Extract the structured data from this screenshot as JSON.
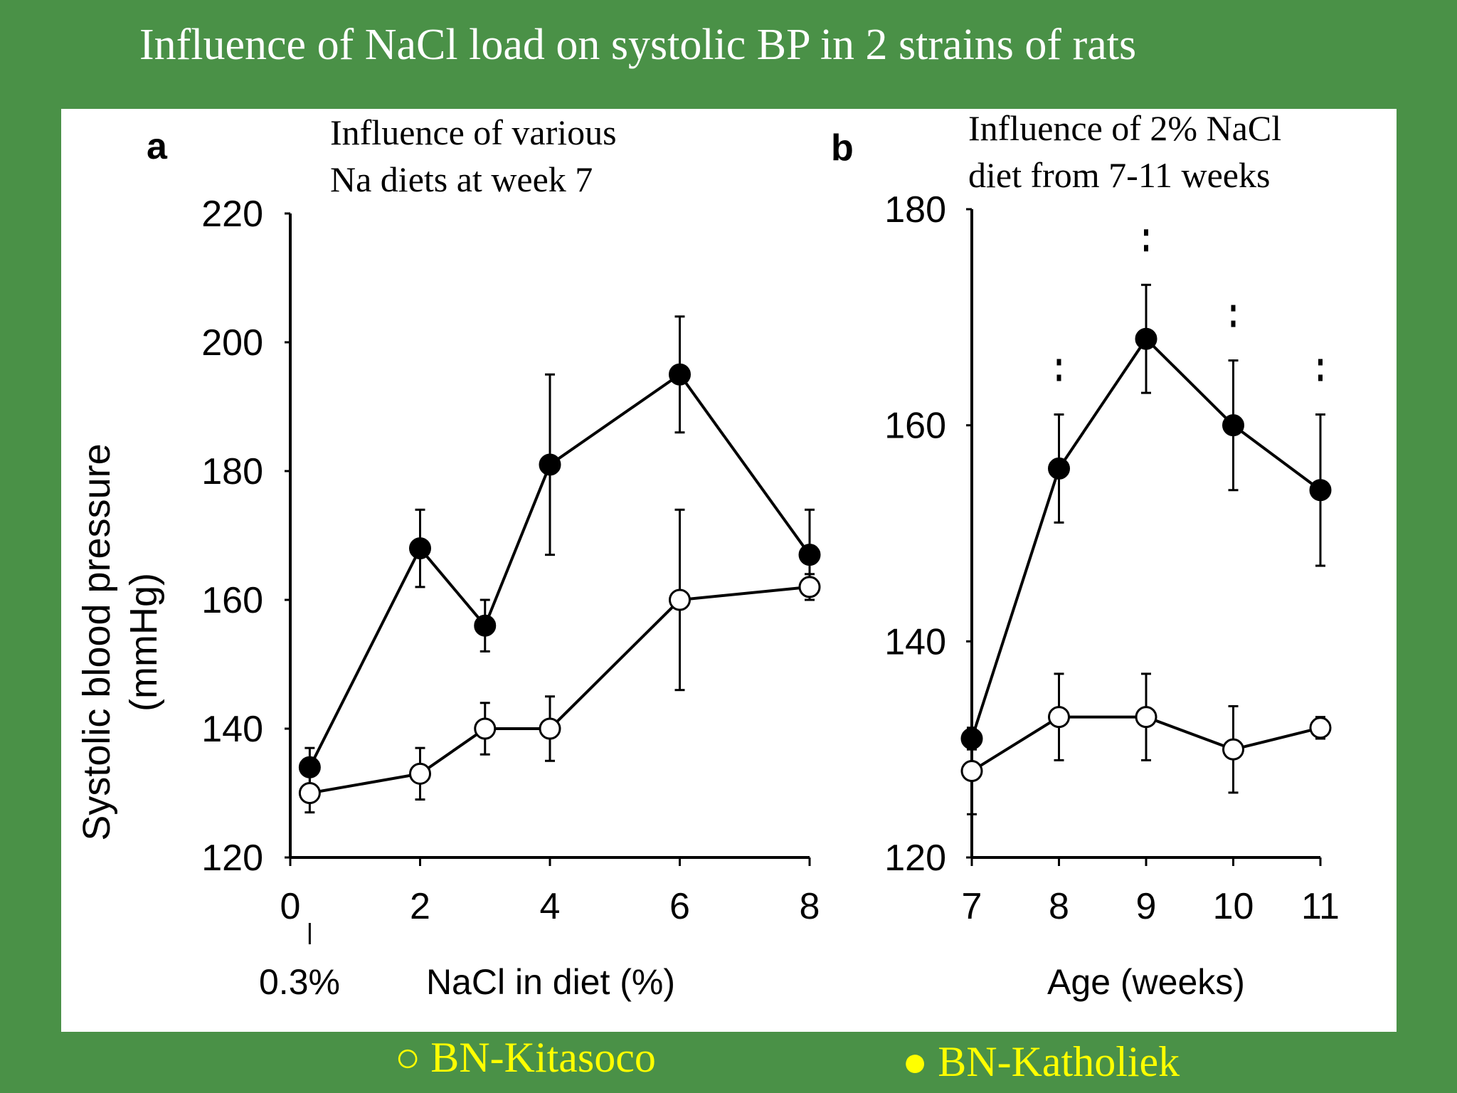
{
  "slide": {
    "title": "Influence of NaCl load on systolic BP in 2 strains of rats"
  },
  "legend": {
    "open_symbol": "○",
    "open_label": "BN-Kitasoco",
    "filled_symbol": "●",
    "filled_label": "BN-Katholiek",
    "text_color": "#ffff00"
  },
  "colors": {
    "background": "#4a9147",
    "panel": "#ffffff",
    "ink": "#000000"
  },
  "chart_data": [
    {
      "type": "line",
      "panel_letter": "a",
      "title": "Influence of various Na diets at week 7",
      "title_lines": [
        "Influence of various",
        "Na diets at week 7"
      ],
      "xlabel": "NaCl in diet (%)",
      "ylabel": "Systolic blood pressure (mmHg)",
      "ylabel_lines": [
        "Systolic blood pressure",
        "(mmHg)"
      ],
      "x_extra_label": "0.3%",
      "xlim": [
        0,
        8
      ],
      "ylim": [
        120,
        220
      ],
      "xticks": [
        0,
        2,
        4,
        6,
        8
      ],
      "xtick_labels": [
        "0",
        "2",
        "4",
        "6",
        "8"
      ],
      "yticks": [
        120,
        140,
        160,
        180,
        200,
        220
      ],
      "ytick_labels": [
        "120",
        "140",
        "160",
        "180",
        "200",
        "220"
      ],
      "grid": false,
      "series": [
        {
          "name": "BN-Katholiek",
          "marker": "filled",
          "points": [
            {
              "x": 0.3,
              "y": 134,
              "err": 3
            },
            {
              "x": 2,
              "y": 168,
              "err": 6
            },
            {
              "x": 3,
              "y": 156,
              "err": 4
            },
            {
              "x": 4,
              "y": 181,
              "err": 14
            },
            {
              "x": 6,
              "y": 195,
              "err": 9
            },
            {
              "x": 8,
              "y": 167,
              "err": 7
            }
          ]
        },
        {
          "name": "BN-Kitasoco",
          "marker": "open",
          "points": [
            {
              "x": 0.3,
              "y": 130,
              "err": 3
            },
            {
              "x": 2,
              "y": 133,
              "err": 4
            },
            {
              "x": 3,
              "y": 140,
              "err": 4
            },
            {
              "x": 4,
              "y": 140,
              "err": 5
            },
            {
              "x": 6,
              "y": 160,
              "err": 14
            },
            {
              "x": 8,
              "y": 162,
              "err": 2
            }
          ]
        }
      ]
    },
    {
      "type": "line",
      "panel_letter": "b",
      "title": "Influence of 2% NaCl diet from 7-11 weeks",
      "title_lines": [
        "Influence of 2% NaCl",
        "diet from 7-11 weeks"
      ],
      "xlabel": "Age (weeks)",
      "xlim": [
        7,
        11
      ],
      "ylim": [
        120,
        180
      ],
      "xticks": [
        7,
        8,
        9,
        10,
        11
      ],
      "xtick_labels": [
        "7",
        "8",
        "9",
        "10",
        "11"
      ],
      "yticks": [
        120,
        140,
        160,
        180
      ],
      "ytick_labels": [
        "120",
        "140",
        "160",
        "180"
      ],
      "grid": false,
      "significance_marks": [
        8,
        9,
        10,
        11
      ],
      "series": [
        {
          "name": "BN-Katholiek",
          "marker": "filled",
          "points": [
            {
              "x": 7,
              "y": 131,
              "err": 1
            },
            {
              "x": 8,
              "y": 156,
              "err": 5
            },
            {
              "x": 9,
              "y": 168,
              "err": 5
            },
            {
              "x": 10,
              "y": 160,
              "err": 6
            },
            {
              "x": 11,
              "y": 154,
              "err": 7
            }
          ]
        },
        {
          "name": "BN-Kitasoco",
          "marker": "open",
          "points": [
            {
              "x": 7,
              "y": 128,
              "err": 4
            },
            {
              "x": 8,
              "y": 133,
              "err": 4
            },
            {
              "x": 9,
              "y": 133,
              "err": 4
            },
            {
              "x": 10,
              "y": 130,
              "err": 4
            },
            {
              "x": 11,
              "y": 132,
              "err": 1
            }
          ]
        }
      ]
    }
  ]
}
